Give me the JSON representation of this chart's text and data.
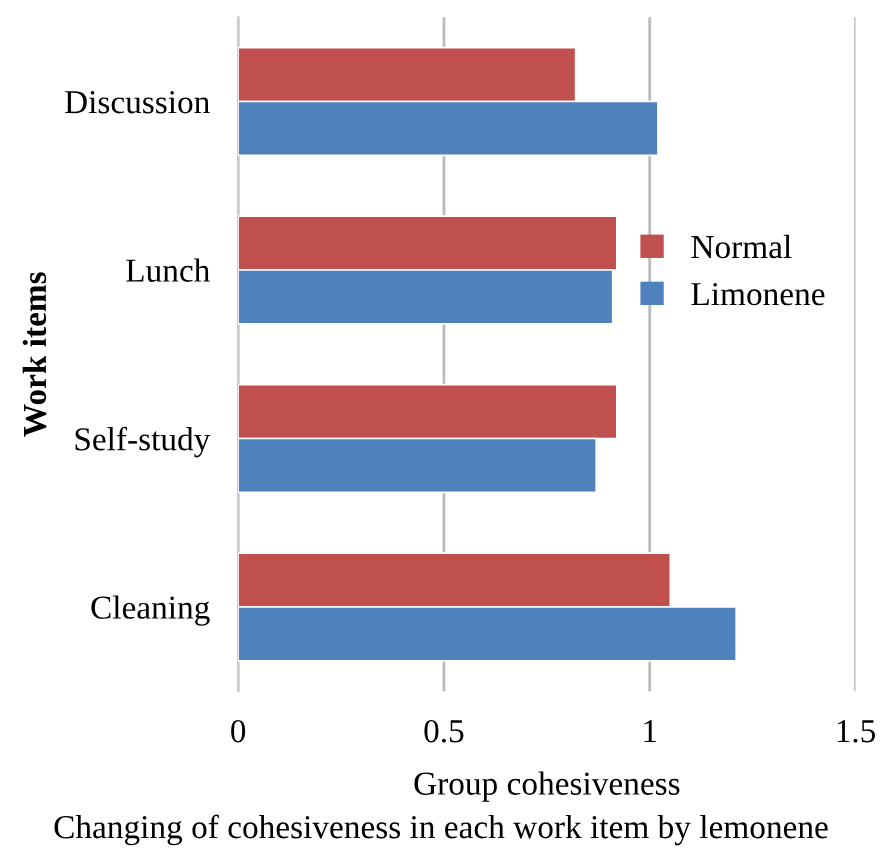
{
  "chart_data": {
    "type": "bar",
    "orientation": "horizontal",
    "ylabel": "Work items",
    "xlabel": "Group cohesiveness",
    "annotations": [
      "Changing of cohesiveness in each work item by lemonene"
    ],
    "categories": [
      "Discussion",
      "Lunch",
      "Self-study",
      "Cleaning"
    ],
    "series": [
      {
        "name": "Normal",
        "color": "#c0504d",
        "values": [
          0.82,
          0.92,
          0.92,
          1.05
        ]
      },
      {
        "name": "Limonene",
        "color": "#4f81bd",
        "values": [
          1.02,
          0.91,
          0.87,
          1.21
        ]
      }
    ],
    "xlim": [
      0,
      1.5
    ],
    "xticks": [
      0,
      0.5,
      1,
      1.5
    ],
    "grid": "x",
    "legend": "right"
  }
}
